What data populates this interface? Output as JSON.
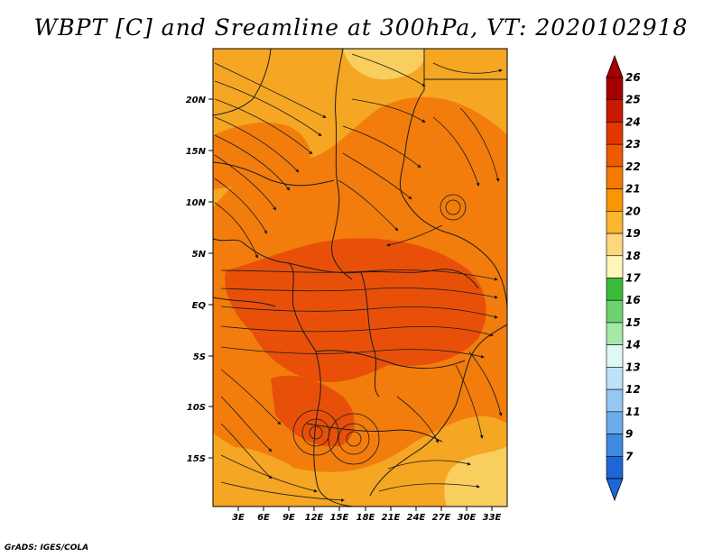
{
  "title": "WBPT [C] and Sreamline at 300hPa, VT: 2020102918",
  "credit": "GrADS: IGES/COLA",
  "map": {
    "lat_labels": [
      "20N",
      "15N",
      "10N",
      "5N",
      "EQ",
      "5S",
      "10S",
      "15S"
    ],
    "lon_labels": [
      "3E",
      "6E",
      "9E",
      "12E",
      "15E",
      "18E",
      "21E",
      "24E",
      "27E",
      "30E",
      "33E"
    ],
    "field_colors": {
      "dark_orange": "#E8500A",
      "orange": "#F27D0C",
      "light_orange": "#F5A623",
      "pale_yellow": "#F8CF5E",
      "coast_line": "#1a1a1a",
      "streamline": "#1a1a1a"
    }
  },
  "colorbar": {
    "levels": [
      "26",
      "25",
      "24",
      "23",
      "22",
      "21",
      "20",
      "19",
      "18",
      "17",
      "16",
      "15",
      "14",
      "13",
      "12",
      "11",
      "9",
      "7"
    ],
    "colors": [
      "#A60000",
      "#C81A00",
      "#E23800",
      "#EE5A00",
      "#F57A00",
      "#F99600",
      "#FBB52E",
      "#FDD77E",
      "#FFF6B8",
      "#3CBA3C",
      "#6ED36E",
      "#A6E8A6",
      "#E0F8F4",
      "#BEE3F8",
      "#94C8F2",
      "#6AACEC",
      "#3E8AE2",
      "#1E66D6"
    ]
  }
}
